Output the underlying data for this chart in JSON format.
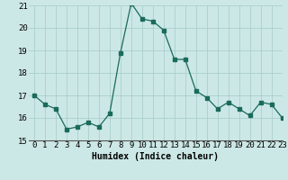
{
  "x": [
    0,
    1,
    2,
    3,
    4,
    5,
    6,
    7,
    8,
    9,
    10,
    11,
    12,
    13,
    14,
    15,
    16,
    17,
    18,
    19,
    20,
    21,
    22,
    23
  ],
  "y": [
    17.0,
    16.6,
    16.4,
    15.5,
    15.6,
    15.8,
    15.6,
    16.2,
    18.9,
    21.1,
    20.4,
    20.3,
    19.9,
    18.6,
    18.6,
    17.2,
    16.9,
    16.4,
    16.7,
    16.4,
    16.1,
    16.7,
    16.6,
    16.0
  ],
  "line_color": "#1a6b5a",
  "bg_color": "#cce8e6",
  "grid_color": "#aacfcc",
  "xlabel": "Humidex (Indice chaleur)",
  "ylim": [
    15,
    21
  ],
  "xlim": [
    -0.5,
    23
  ],
  "yticks": [
    15,
    16,
    17,
    18,
    19,
    20,
    21
  ],
  "xticks": [
    0,
    1,
    2,
    3,
    4,
    5,
    6,
    7,
    8,
    9,
    10,
    11,
    12,
    13,
    14,
    15,
    16,
    17,
    18,
    19,
    20,
    21,
    22,
    23
  ],
  "xlabel_fontsize": 7,
  "tick_fontsize": 6.5
}
